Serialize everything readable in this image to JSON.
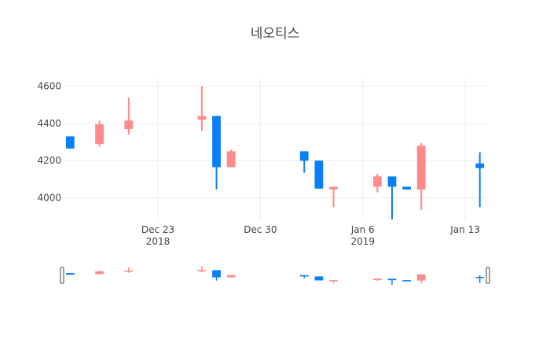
{
  "chart_data": {
    "type": "candlestick",
    "title": "네오티스",
    "xlabel": "",
    "ylabel": "",
    "grid": true,
    "legend": "none",
    "colors": {
      "increasing": "#ff8a8a",
      "decreasing": "#0a7ff7"
    },
    "xlim": [
      "2018-12-17",
      "2019-01-14"
    ],
    "ylim": [
      3880,
      4640
    ],
    "y_ticks": [
      4000,
      4200,
      4400,
      4600
    ],
    "y_tick_labels": [
      "4000",
      "4200",
      "4400",
      "4600"
    ],
    "x_ticks": [
      {
        "date": "2018-12-23",
        "label": "Dec 23",
        "sublabel": "2018"
      },
      {
        "date": "2018-12-30",
        "label": "Dec 30",
        "sublabel": ""
      },
      {
        "date": "2019-01-06",
        "label": "Jan 6",
        "sublabel": "2019"
      },
      {
        "date": "2019-01-13",
        "label": "Jan 13",
        "sublabel": ""
      }
    ],
    "candles": [
      {
        "date": "2018-12-17",
        "open": 4330,
        "high": 4330,
        "low": 4265,
        "close": 4265
      },
      {
        "date": "2018-12-19",
        "open": 4290,
        "high": 4415,
        "low": 4275,
        "close": 4395
      },
      {
        "date": "2018-12-21",
        "open": 4370,
        "high": 4540,
        "low": 4340,
        "close": 4415
      },
      {
        "date": "2018-12-26",
        "open": 4420,
        "high": 4600,
        "low": 4360,
        "close": 4440
      },
      {
        "date": "2018-12-27",
        "open": 4440,
        "high": 4440,
        "low": 4045,
        "close": 4165
      },
      {
        "date": "2018-12-28",
        "open": 4165,
        "high": 4260,
        "low": 4165,
        "close": 4250
      },
      {
        "date": "2019-01-02",
        "open": 4250,
        "high": 4250,
        "low": 4135,
        "close": 4200
      },
      {
        "date": "2019-01-03",
        "open": 4200,
        "high": 4200,
        "low": 4050,
        "close": 4050
      },
      {
        "date": "2019-01-04",
        "open": 4045,
        "high": 4060,
        "low": 3950,
        "close": 4060
      },
      {
        "date": "2019-01-07",
        "open": 4060,
        "high": 4130,
        "low": 4030,
        "close": 4115
      },
      {
        "date": "2019-01-08",
        "open": 4115,
        "high": 4115,
        "low": 3885,
        "close": 4060
      },
      {
        "date": "2019-01-09",
        "open": 4060,
        "high": 4060,
        "low": 4045,
        "close": 4045
      },
      {
        "date": "2019-01-10",
        "open": 4045,
        "high": 4295,
        "low": 3935,
        "close": 4280
      },
      {
        "date": "2019-01-14",
        "open": 4185,
        "high": 4245,
        "low": 3950,
        "close": 4160
      }
    ]
  }
}
